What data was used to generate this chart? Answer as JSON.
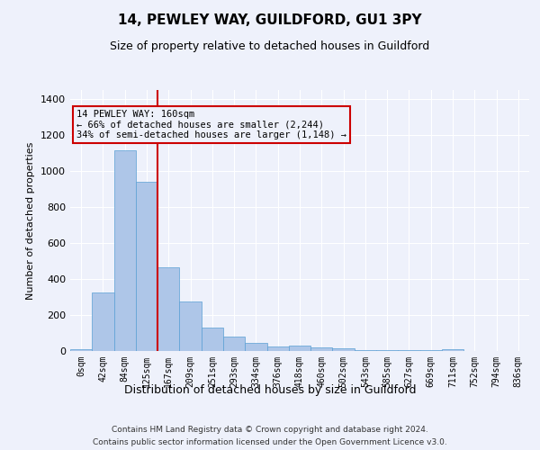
{
  "title": "14, PEWLEY WAY, GUILDFORD, GU1 3PY",
  "subtitle": "Size of property relative to detached houses in Guildford",
  "xlabel": "Distribution of detached houses by size in Guildford",
  "ylabel": "Number of detached properties",
  "categories": [
    "0sqm",
    "42sqm",
    "84sqm",
    "125sqm",
    "167sqm",
    "209sqm",
    "251sqm",
    "293sqm",
    "334sqm",
    "376sqm",
    "418sqm",
    "460sqm",
    "502sqm",
    "543sqm",
    "585sqm",
    "627sqm",
    "669sqm",
    "711sqm",
    "752sqm",
    "794sqm",
    "836sqm"
  ],
  "values": [
    10,
    325,
    1115,
    940,
    465,
    275,
    130,
    78,
    45,
    25,
    30,
    20,
    15,
    5,
    5,
    5,
    5,
    10,
    0,
    0,
    0
  ],
  "bar_color": "#aec6e8",
  "bar_edge_color": "#5a9fd4",
  "property_line_x": 4,
  "property_line_color": "#cc0000",
  "annotation_text": "14 PEWLEY WAY: 160sqm\n← 66% of detached houses are smaller (2,244)\n34% of semi-detached houses are larger (1,148) →",
  "annotation_box_color": "#cc0000",
  "annotation_text_color": "#000000",
  "ylim": [
    0,
    1450
  ],
  "yticks": [
    0,
    200,
    400,
    600,
    800,
    1000,
    1200,
    1400
  ],
  "background_color": "#eef1fb",
  "grid_color": "#ffffff",
  "footer_line1": "Contains HM Land Registry data © Crown copyright and database right 2024.",
  "footer_line2": "Contains public sector information licensed under the Open Government Licence v3.0."
}
